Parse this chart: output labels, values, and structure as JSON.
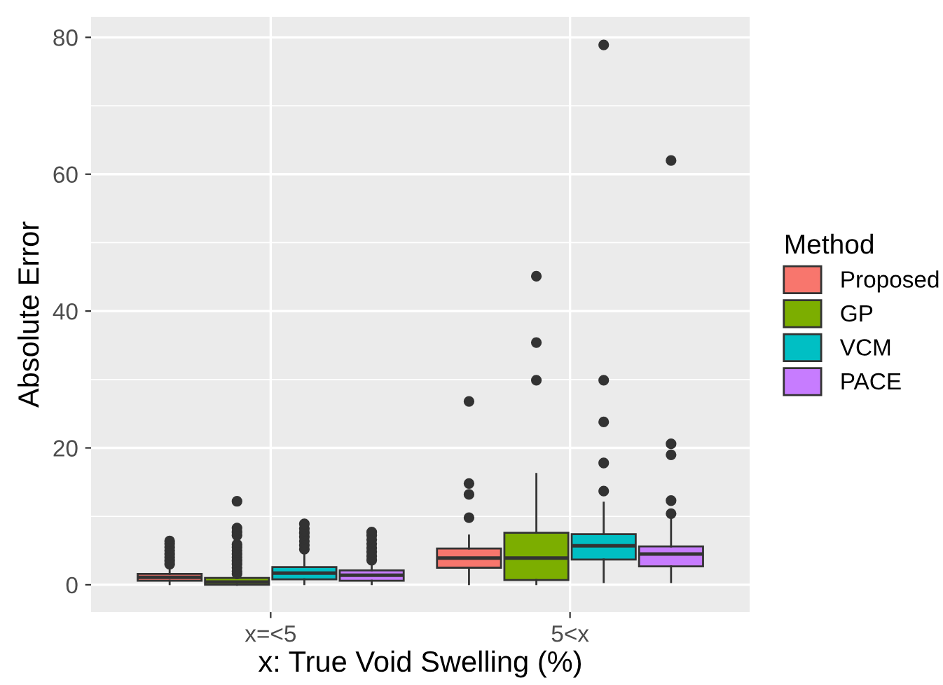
{
  "chart_data": {
    "type": "box",
    "xlabel": "x: True Void Swelling (%)",
    "ylabel": "Absolute Error",
    "legend_title": "Method",
    "categories": [
      "x=<5",
      "5<x"
    ],
    "ylim": [
      -4,
      83
    ],
    "yticks": [
      0,
      20,
      40,
      60,
      80
    ],
    "grid": true,
    "legend": "right",
    "series": [
      {
        "name": "Proposed",
        "color": "#f8766d",
        "boxes": [
          {
            "low": 0.1,
            "q1": 0.6,
            "median": 1.1,
            "q3": 1.6,
            "high": 2.8,
            "outliers": [
              3.0,
              3.5,
              4.0,
              4.5,
              5.0,
              5.5,
              6.0,
              6.4
            ]
          },
          {
            "low": 0.1,
            "q1": 2.5,
            "median": 3.9,
            "q3": 5.3,
            "high": 7.2,
            "outliers": [
              9.8,
              13.2,
              14.8,
              26.8
            ]
          }
        ]
      },
      {
        "name": "GP",
        "color": "#7cae00",
        "boxes": [
          {
            "low": 0.0,
            "q1": 0.0,
            "median": 0.4,
            "q3": 1.0,
            "high": 1.4,
            "outliers": [
              1.6,
              2.0,
              2.5,
              3.0,
              3.5,
              4.0,
              4.5,
              5.0,
              5.5,
              5.9,
              7.2,
              7.7,
              8.3,
              12.2
            ]
          },
          {
            "low": 0.1,
            "q1": 0.7,
            "median": 3.9,
            "q3": 7.6,
            "high": 16.2,
            "outliers": [
              29.9,
              35.4,
              45.1
            ]
          }
        ]
      },
      {
        "name": "VCM",
        "color": "#00bfc4",
        "boxes": [
          {
            "low": 0.1,
            "q1": 0.8,
            "median": 1.7,
            "q3": 2.6,
            "high": 4.8,
            "outliers": [
              5.2,
              5.8,
              6.4,
              7.0,
              7.6,
              8.2,
              8.9
            ]
          },
          {
            "low": 0.4,
            "q1": 3.7,
            "median": 5.7,
            "q3": 7.4,
            "high": 12.0,
            "outliers": [
              13.7,
              17.8,
              23.8,
              29.9,
              78.9
            ]
          }
        ]
      },
      {
        "name": "PACE",
        "color": "#c77cff",
        "boxes": [
          {
            "low": 0.1,
            "q1": 0.6,
            "median": 1.4,
            "q3": 2.1,
            "high": 3.5,
            "outliers": [
              3.6,
              4.2,
              4.8,
              5.4,
              6.0,
              6.6,
              7.2,
              7.7
            ]
          },
          {
            "low": 0.4,
            "q1": 2.7,
            "median": 4.5,
            "q3": 5.6,
            "high": 10.0,
            "outliers": [
              10.4,
              12.3,
              19.0,
              20.6,
              62.0
            ]
          }
        ]
      }
    ]
  }
}
